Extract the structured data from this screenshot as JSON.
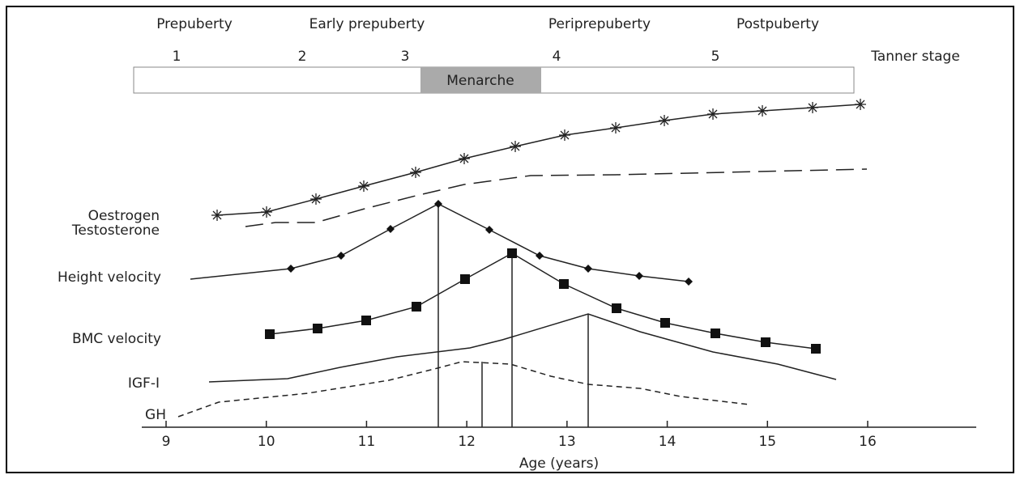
{
  "stages": [
    "Prepuberty",
    "Early prepuberty",
    "Periprepuberty",
    "Postpuberty"
  ],
  "tanner": {
    "numbers": [
      1,
      2,
      3,
      4,
      5
    ],
    "label": "Tanner stage"
  },
  "menarche": "Menarche",
  "curve_labels": {
    "oestrogen": "Oestrogen",
    "testosterone": "Testosterone",
    "height_velocity": "Height velocity",
    "bmc_velocity": "BMC velocity",
    "igf": "IGF-I",
    "gh": "GH"
  },
  "x_axis": {
    "ticks": [
      9,
      10,
      11,
      12,
      13,
      14,
      15,
      16
    ],
    "label": "Age (years)"
  }
}
